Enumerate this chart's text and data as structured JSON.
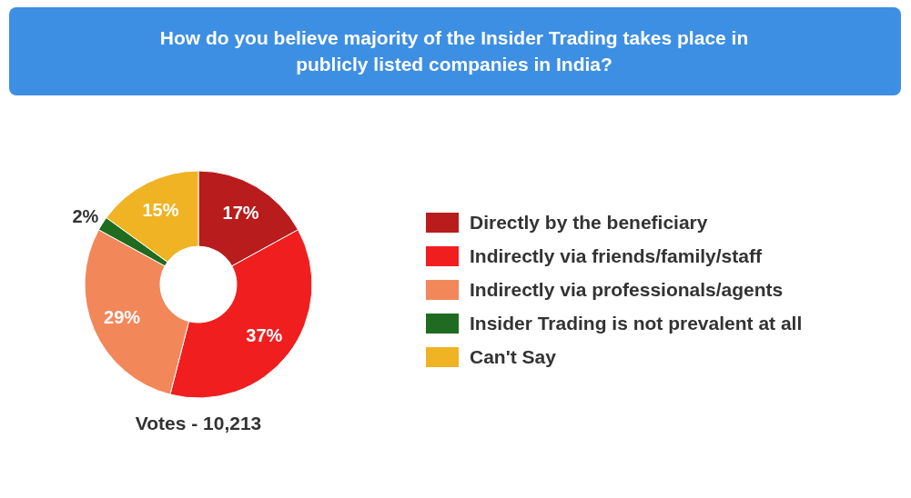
{
  "chart_data": {
    "type": "donut",
    "title": "How do you believe majority of the Insider Trading takes place in publicly listed companies in India?",
    "categories": [
      "Directly by the beneficiary",
      "Indirectly via friends/family/staff",
      "Indirectly via professionals/agents",
      "Insider Trading is not prevalent at all",
      "Can't Say"
    ],
    "values": [
      17,
      37,
      29,
      2,
      15
    ],
    "value_labels": [
      "17%",
      "37%",
      "29%",
      "2%",
      "15%"
    ],
    "colors": [
      "#b81c1c",
      "#f01e1e",
      "#f2875a",
      "#1f6b1f",
      "#f0b323"
    ],
    "legend": "right",
    "annotations": [
      "Votes - 10,213"
    ]
  }
}
